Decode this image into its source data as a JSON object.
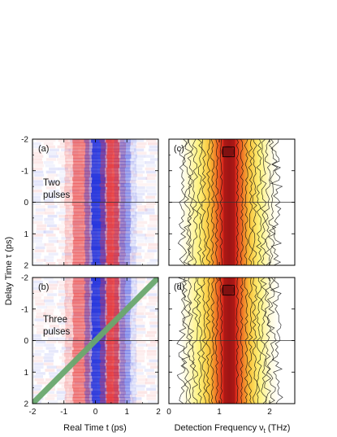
{
  "chart_data": [
    {
      "id": "a",
      "type": "heatmap",
      "panel_label": "(a)",
      "annotation": [
        "Two",
        "pulses"
      ],
      "x_range": [
        -2,
        2
      ],
      "y_range": [
        -2,
        2
      ],
      "x_ticks": [
        "-2",
        "-1",
        "0",
        "1",
        "2"
      ],
      "y_ticks": [
        "-2",
        "-1",
        "0",
        "1",
        "2"
      ],
      "y_inverted": true,
      "colormap": "blue-white-red (diverging)",
      "stripe_centers_t": [
        -0.45,
        0.1,
        0.55,
        0.95
      ],
      "stripe_signs": [
        "red",
        "blue",
        "red",
        "blue"
      ],
      "reference_line_tau": 0
    },
    {
      "id": "b",
      "type": "heatmap",
      "panel_label": "(b)",
      "annotation": [
        "Three",
        "pulses"
      ],
      "x_range": [
        -2,
        2
      ],
      "y_range": [
        -2,
        2
      ],
      "x_ticks": [
        "-2",
        "-1",
        "0",
        "1",
        "2"
      ],
      "y_ticks": [
        "-2",
        "-1",
        "0",
        "1",
        "2"
      ],
      "y_inverted": true,
      "colormap": "blue-white-red (diverging)",
      "stripe_centers_t": [
        -0.45,
        0.1,
        0.55,
        0.95
      ],
      "stripe_signs": [
        "red",
        "blue",
        "red",
        "blue"
      ],
      "reference_line_tau": 0,
      "diagonal_line": {
        "from": [
          -2,
          2
        ],
        "to": [
          2,
          -2
        ],
        "color": "#6aa86e"
      }
    },
    {
      "id": "c",
      "type": "heatmap",
      "panel_label": "(c)",
      "x_range": [
        0,
        2.5
      ],
      "y_range": [
        -2,
        2
      ],
      "x_ticks": [
        "0",
        "1",
        "2"
      ],
      "y_ticks": [
        "-2",
        "-1",
        "0",
        "1",
        "2"
      ],
      "y_inverted": true,
      "colormap": "white-yellow-red-darkred (contour)",
      "peak_frequency": 1.2,
      "peak_width": 0.45,
      "contour_levels": 10,
      "reference_line_tau": 0
    },
    {
      "id": "d",
      "type": "heatmap",
      "panel_label": "(d)",
      "x_range": [
        0,
        2.5
      ],
      "y_range": [
        -2,
        2
      ],
      "x_ticks": [
        "0",
        "1",
        "2"
      ],
      "y_ticks": [
        "-2",
        "-1",
        "0",
        "1",
        "2"
      ],
      "y_inverted": true,
      "colormap": "white-yellow-red-darkred (contour)",
      "peak_frequency": 1.2,
      "peak_width": 0.45,
      "contour_levels": 10,
      "reference_line_tau": 0
    }
  ],
  "axis_labels": {
    "y": "Delay Time  τ (ps)",
    "x_left": "Real Time  t (ps)",
    "x_right_main": "Detection Frequency  ν",
    "x_right_sub": "t",
    "x_right_unit": " (THz)"
  },
  "colors": {
    "red": "#e8393a",
    "blue": "#2233dd",
    "dark_red": "#7a1010",
    "yellow": "#fff27a",
    "green_line": "#6aa86e"
  }
}
